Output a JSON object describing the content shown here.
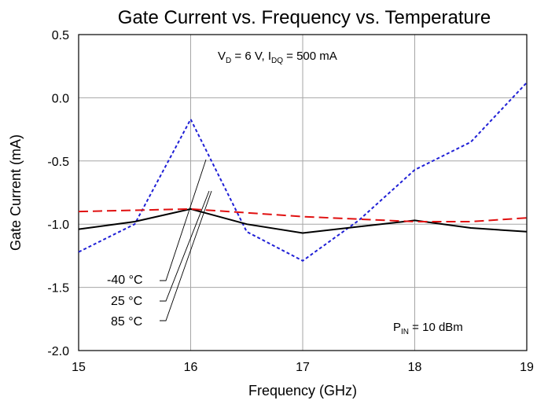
{
  "chart_data": {
    "type": "line",
    "title": "Gate Current vs. Frequency vs. Temperature",
    "xlabel": "Frequency (GHz)",
    "ylabel": "Gate Current (mA)",
    "xlim": [
      15,
      19
    ],
    "ylim": [
      -2.0,
      0.5
    ],
    "x_ticks": [
      15,
      16,
      17,
      18,
      19
    ],
    "y_ticks": [
      0.5,
      0.0,
      -0.5,
      -1.0,
      -1.5,
      -2.0
    ],
    "y_tick_labels": [
      "0.5",
      "0.0",
      "-0.5",
      "-1.0",
      "-1.5",
      "-2.0"
    ],
    "grid": true,
    "annotations": {
      "conditions": {
        "vd": "V",
        "vd_sub": "D",
        "vd_rest": " = 6 V, I",
        "idq_sub": "DQ",
        "idq_rest": " = 500 mA"
      },
      "pin": {
        "p": "P",
        "sub": "IN",
        "rest": " = 10 dBm"
      }
    },
    "series": [
      {
        "name": "-40 °C",
        "color": "#1f1fd6",
        "dash": "dotted",
        "x": [
          15,
          15.5,
          16,
          16.5,
          17,
          17.5,
          18,
          18.5,
          19
        ],
        "y": [
          -1.22,
          -1.0,
          -0.17,
          -1.06,
          -1.29,
          -0.97,
          -0.57,
          -0.35,
          0.12
        ]
      },
      {
        "name": "25 °C",
        "color": "#000000",
        "dash": "solid",
        "x": [
          15,
          15.5,
          16,
          16.5,
          17,
          17.5,
          18,
          18.5,
          19
        ],
        "y": [
          -1.04,
          -0.98,
          -0.88,
          -1.0,
          -1.07,
          -1.02,
          -0.97,
          -1.03,
          -1.06
        ]
      },
      {
        "name": "85 °C",
        "color": "#e01010",
        "dash": "dashed",
        "x": [
          15,
          15.5,
          16,
          16.5,
          17,
          17.5,
          18,
          18.5,
          19
        ],
        "y": [
          -0.9,
          -0.89,
          -0.88,
          -0.91,
          -0.94,
          -0.96,
          -0.98,
          -0.98,
          -0.95
        ]
      }
    ]
  }
}
